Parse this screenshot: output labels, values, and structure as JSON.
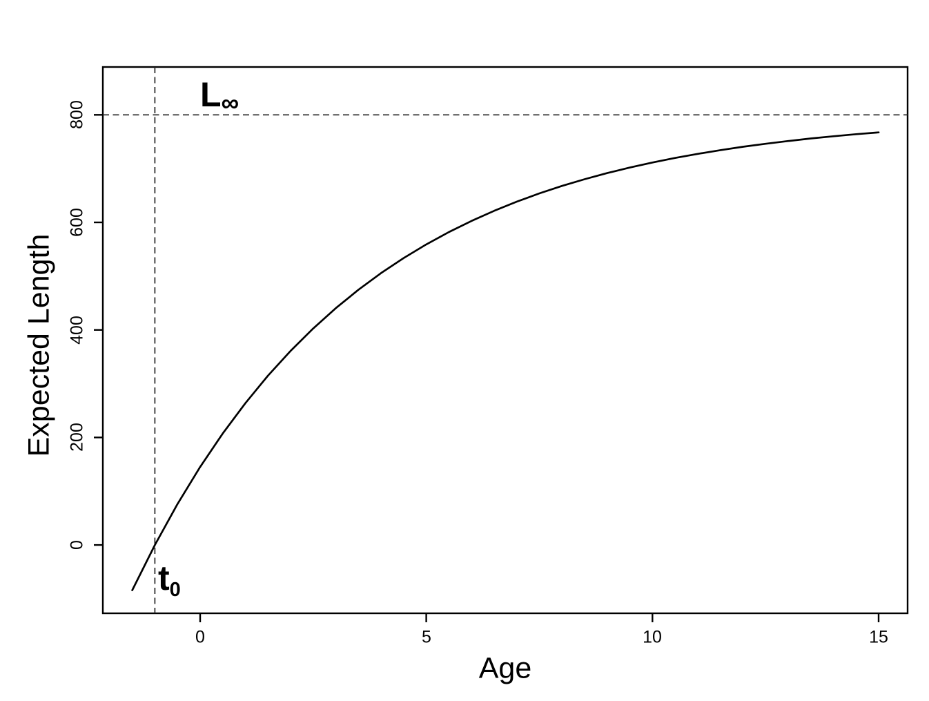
{
  "figure": {
    "background": "#ffffff",
    "foreground": "#000000"
  },
  "chart_data": {
    "type": "line",
    "title": "",
    "xlabel": "Age",
    "ylabel": "Expected Length",
    "x_ticks": [
      "0",
      "5",
      "10",
      "15"
    ],
    "x_tick_values": [
      0,
      5,
      10,
      15
    ],
    "y_ticks": [
      "0",
      "200",
      "400",
      "600",
      "800"
    ],
    "y_tick_values": [
      0,
      200,
      400,
      600,
      800
    ],
    "xlim": [
      -2.15,
      15.64
    ],
    "ylim": [
      -127,
      889
    ],
    "grid": false,
    "frame": "box",
    "annotations": {
      "l_infinity": {
        "main": "L",
        "sub": "∞",
        "type": "horizontal-dashed-line",
        "y": 800
      },
      "t_zero": {
        "main": "t",
        "sub": "0",
        "type": "vertical-dashed-line",
        "x": -1
      }
    },
    "series": [
      {
        "name": "von-bertalanffy-growth-curve",
        "color": "#000000",
        "x": [
          -1.5,
          -1.0,
          -0.5,
          0.0,
          0.5,
          1.0,
          1.5,
          2.0,
          2.5,
          3.0,
          3.5,
          4.0,
          4.5,
          5.0,
          5.5,
          6.0,
          6.5,
          7.0,
          7.5,
          8.0,
          8.5,
          9.0,
          9.5,
          10.0,
          10.5,
          11.0,
          11.5,
          12.0,
          12.5,
          13.0,
          13.5,
          14.0,
          14.5,
          15.0
        ],
        "y": [
          -84.1,
          0.0,
          76.1,
          145.0,
          207.3,
          263.7,
          314.8,
          361.0,
          402.7,
          440.5,
          474.7,
          505.7,
          533.7,
          559.0,
          582.0,
          602.7,
          621.5,
          638.5,
          653.9,
          667.8,
          680.3,
          691.7,
          702.0,
          711.4,
          719.8,
          727.4,
          734.3,
          740.6,
          746.2,
          751.3,
          756.0,
          760.2,
          764.0,
          767.4
        ]
      }
    ]
  }
}
